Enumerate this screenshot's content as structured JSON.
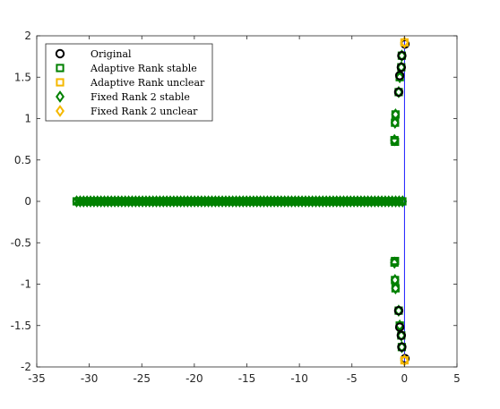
{
  "chart_data": {
    "type": "scatter",
    "title": "",
    "xlabel": "",
    "ylabel": "",
    "xlim": [
      -35,
      5
    ],
    "ylim": [
      -2,
      2
    ],
    "xticks": [
      -35,
      -30,
      -25,
      -20,
      -15,
      -10,
      -5,
      0,
      5
    ],
    "yticks": [
      -2,
      -1.5,
      -1,
      -0.5,
      0,
      0.5,
      1,
      1.5,
      2
    ],
    "xtick_labels": [
      "-35",
      "-30",
      "-25",
      "-20",
      "-15",
      "-10",
      "-5",
      "0",
      "5"
    ],
    "ytick_labels": [
      "-2",
      "-1.5",
      "-1",
      "-0.5",
      "0",
      "0.5",
      "1",
      "1.5",
      "2"
    ],
    "grid": false,
    "legend_position": "top-left",
    "reference_line": {
      "x": 0,
      "color": "#0000ff"
    },
    "series": [
      {
        "name": "Original",
        "marker": "circle",
        "color": "#000000",
        "points": [
          [
            0.05,
            1.9
          ],
          [
            -0.25,
            1.76
          ],
          [
            -0.3,
            1.62
          ],
          [
            -0.45,
            1.52
          ],
          [
            -0.55,
            1.32
          ],
          [
            0.05,
            -1.9
          ],
          [
            -0.25,
            -1.76
          ],
          [
            -0.3,
            -1.62
          ],
          [
            -0.45,
            -1.52
          ],
          [
            -0.55,
            -1.32
          ]
        ]
      },
      {
        "name": "Adaptive Rank stable",
        "marker": "square",
        "color": "#008000",
        "points": [
          [
            -0.25,
            1.76
          ],
          [
            -0.3,
            1.62
          ],
          [
            -0.45,
            1.5
          ],
          [
            -0.55,
            1.32
          ],
          [
            -0.85,
            1.05
          ],
          [
            -0.9,
            0.95
          ],
          [
            -0.95,
            0.74
          ],
          [
            -0.9,
            0.72
          ],
          [
            -0.25,
            -1.76
          ],
          [
            -0.3,
            -1.62
          ],
          [
            -0.45,
            -1.5
          ],
          [
            -0.55,
            -1.32
          ],
          [
            -0.85,
            -1.05
          ],
          [
            -0.9,
            -0.95
          ],
          [
            -0.95,
            -0.74
          ],
          [
            -0.9,
            -0.72
          ]
        ],
        "axis_cluster": {
          "y": 0,
          "x_range": [
            -31.2,
            -0.1
          ],
          "spacing": 0.25
        }
      },
      {
        "name": "Adaptive Rank unclear",
        "marker": "square",
        "color": "#f5b800",
        "points": [
          [
            0.0,
            1.92
          ],
          [
            0.0,
            -1.92
          ]
        ]
      },
      {
        "name": "Fixed Rank 2 stable",
        "marker": "diamond",
        "color": "#008000",
        "points": [
          [
            -0.25,
            1.76
          ],
          [
            -0.3,
            1.62
          ],
          [
            -0.45,
            1.5
          ],
          [
            -0.55,
            1.32
          ],
          [
            -0.85,
            1.05
          ],
          [
            -0.9,
            0.95
          ],
          [
            -0.95,
            0.74
          ],
          [
            -0.25,
            -1.76
          ],
          [
            -0.3,
            -1.62
          ],
          [
            -0.45,
            -1.5
          ],
          [
            -0.55,
            -1.32
          ],
          [
            -0.85,
            -1.05
          ],
          [
            -0.9,
            -0.95
          ],
          [
            -0.95,
            -0.74
          ]
        ],
        "axis_cluster": {
          "y": 0,
          "x_range": [
            -31.2,
            -0.1
          ],
          "spacing": 0.33
        }
      },
      {
        "name": "Fixed Rank 2 unclear",
        "marker": "diamond",
        "color": "#f5b800",
        "points": [
          [
            0.0,
            1.92
          ],
          [
            0.0,
            -1.92
          ]
        ]
      }
    ]
  }
}
